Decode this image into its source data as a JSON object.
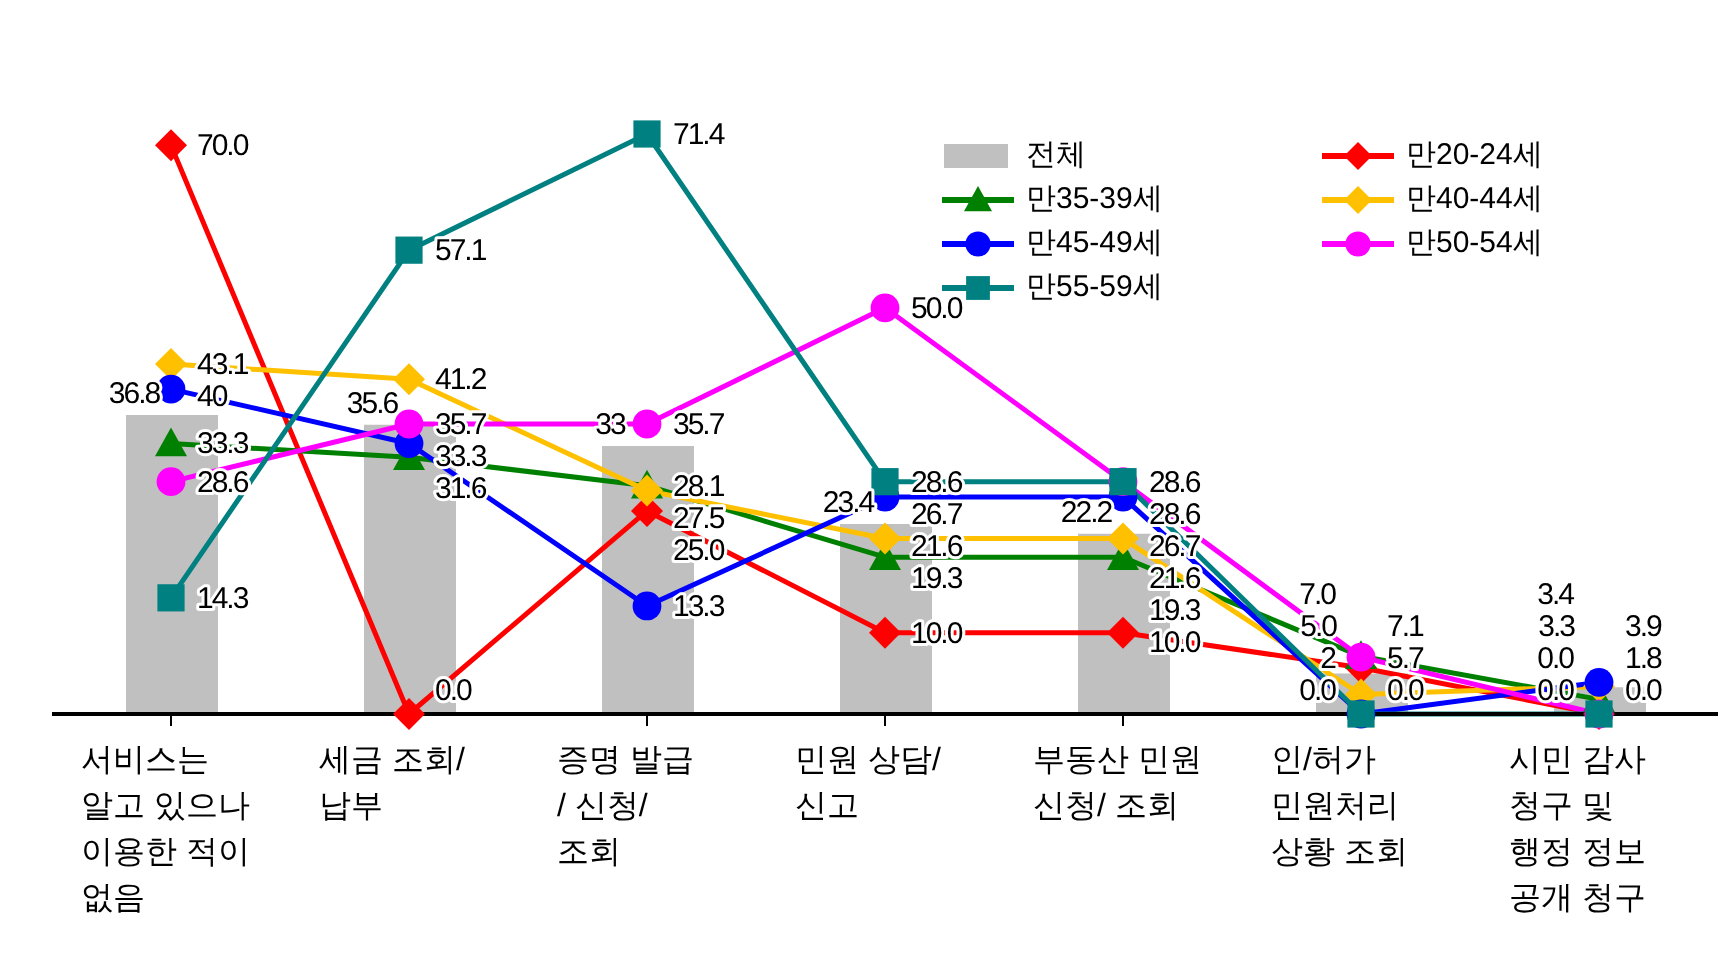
{
  "chart_data": {
    "type": "line",
    "categories": [
      "서비스는 알고 있으나 이용한 적이 없음",
      "세금 조회/ 납부",
      "증명 발급 / 신청/ 조회",
      "민원 상담/ 신고",
      "부동산 민원 신청/ 조회",
      "인/허가 민원처리 상황 조회",
      "시민 감사 청구 및 행정 정보 공개 청구"
    ],
    "series": [
      {
        "name": "전체",
        "type": "bar",
        "color": "#c0c0c0",
        "values": [
          36.8,
          35.6,
          33,
          23.4,
          22.2,
          5.0,
          3.3
        ],
        "value_labels": [
          "36.8",
          "35.6",
          "33",
          "23.4",
          "22.2",
          "5.0",
          "3.3"
        ]
      },
      {
        "name": "만20-24세",
        "color": "#ff0000",
        "marker": "diamond",
        "values": [
          70.0,
          0.0,
          25.0,
          10.0,
          10.0,
          5.7,
          0.0
        ],
        "value_labels": [
          "70.0",
          "0.0",
          "25.0",
          "10.0",
          "10.0",
          "5.7",
          "0.0"
        ]
      },
      {
        "name": "만35-39세",
        "color": "#008000",
        "marker": "triangle",
        "values": [
          33.3,
          31.6,
          28.1,
          19.3,
          19.3,
          7.1,
          1.8
        ],
        "value_labels": [
          "33.3",
          "31.6",
          "28.1",
          "19.3",
          "19.3",
          "7.1",
          "1.8"
        ]
      },
      {
        "name": "만40-44세",
        "color": "#ffc000",
        "marker": "diamond",
        "values": [
          43.1,
          41.2,
          27.5,
          21.6,
          21.6,
          2.4,
          3.4
        ],
        "value_labels": [
          "43.1",
          "41.2",
          "27.5",
          "21.6",
          "21.6",
          "2",
          "3.4"
        ]
      },
      {
        "name": "만45-49세",
        "color": "#0000ff",
        "marker": "circle",
        "values": [
          40,
          33.3,
          13.3,
          26.7,
          26.7,
          0.0,
          3.9
        ],
        "value_labels": [
          "40",
          "33.3",
          "13.3",
          "26.7",
          "26.7",
          "0.0",
          "3.9"
        ]
      },
      {
        "name": "만50-54세",
        "color": "#ff00ff",
        "marker": "circle",
        "values": [
          28.6,
          35.7,
          35.7,
          50.0,
          28.6,
          7.0,
          0.0
        ],
        "value_labels": [
          "28.6",
          "35.7",
          "35.7",
          "50.0",
          "28.6",
          "7.0",
          "0.0"
        ]
      },
      {
        "name": "만55-59세",
        "color": "#008080",
        "marker": "square",
        "values": [
          14.3,
          57.1,
          71.4,
          28.6,
          28.6,
          0.0,
          0.0
        ],
        "value_labels": [
          "14.3",
          "57.1",
          "71.4",
          "28.6",
          "28.6",
          "0.0",
          "0.0"
        ]
      }
    ],
    "legend": "top right",
    "grid": false
  }
}
